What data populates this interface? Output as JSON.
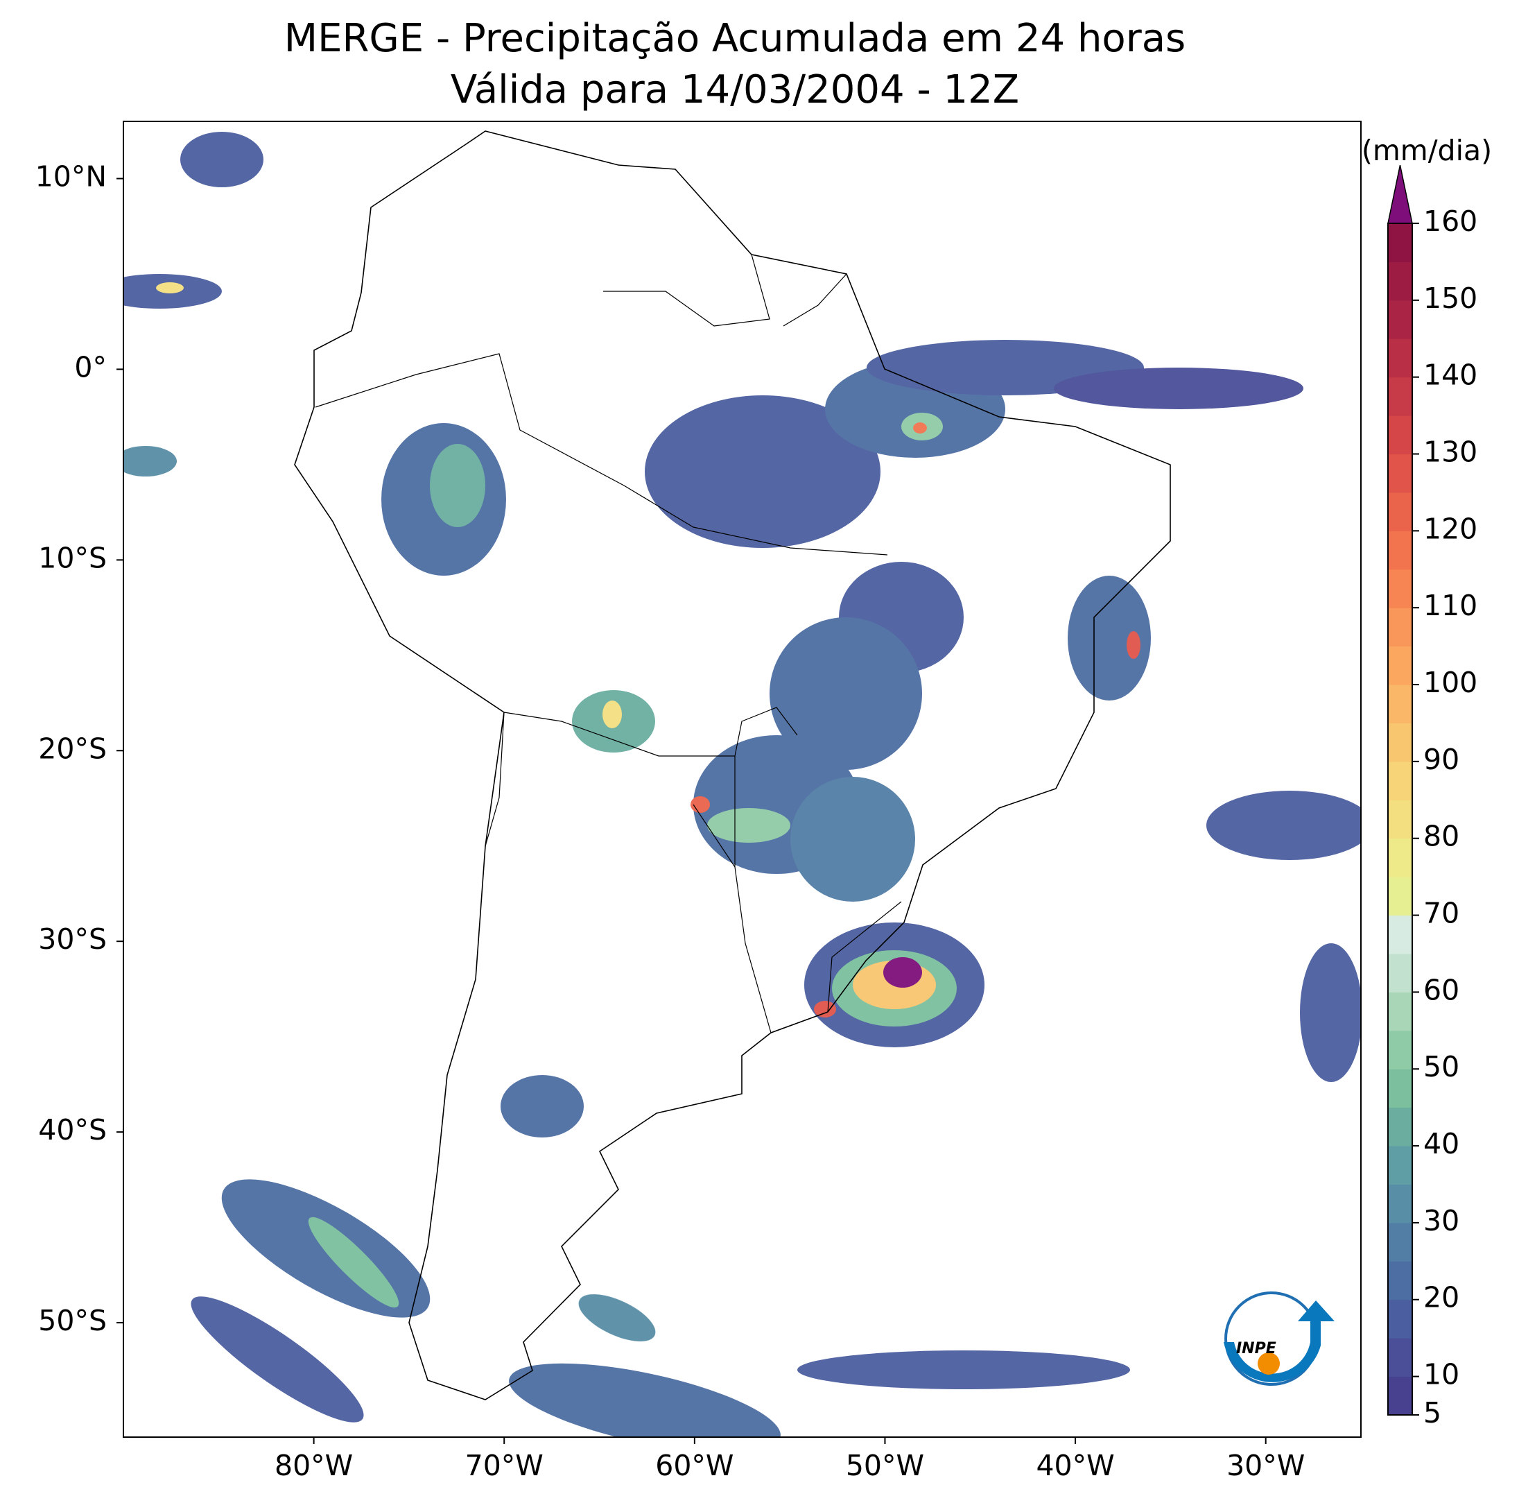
{
  "chart_data": {
    "type": "map",
    "title": "MERGE - Precipitação Acumulada em 24 horas",
    "subtitle": "Válida para 14/03/2004 - 12Z",
    "xlim": [
      -90,
      -25
    ],
    "ylim": [
      -56,
      13
    ],
    "xticks": [
      {
        "value": -80,
        "label": "80°W"
      },
      {
        "value": -70,
        "label": "70°W"
      },
      {
        "value": -60,
        "label": "60°W"
      },
      {
        "value": -50,
        "label": "50°W"
      },
      {
        "value": -40,
        "label": "40°W"
      },
      {
        "value": -30,
        "label": "30°W"
      }
    ],
    "yticks": [
      {
        "value": 10,
        "label": "10°N"
      },
      {
        "value": 0,
        "label": "0°"
      },
      {
        "value": -10,
        "label": "10°S"
      },
      {
        "value": -20,
        "label": "20°S"
      },
      {
        "value": -30,
        "label": "30°S"
      },
      {
        "value": -40,
        "label": "40°S"
      },
      {
        "value": -50,
        "label": "50°S"
      }
    ],
    "colorbar": {
      "label": "(mm/dia)",
      "clim": [
        5,
        160
      ],
      "ticks": [
        5,
        10,
        20,
        30,
        40,
        50,
        60,
        70,
        80,
        90,
        100,
        110,
        120,
        130,
        140,
        150,
        160
      ],
      "colors": [
        "#47418f",
        "#4a4f98",
        "#4b5e9f",
        "#4d6ea3",
        "#527ea5",
        "#588ea6",
        "#5f9ea4",
        "#6baea0",
        "#7bbf9f",
        "#90cba7",
        "#a8d6b7",
        "#c2e1ce",
        "#d8ebe3",
        "#e6f092",
        "#eeea8a",
        "#f4df80",
        "#f8d478",
        "#f9c670",
        "#fab768",
        "#fba760",
        "#f9965a",
        "#f78554",
        "#f2744f",
        "#ea634b",
        "#e05449",
        "#d44648",
        "#c73a47",
        "#b82f46",
        "#aa2545",
        "#9c1c44",
        "#8f1443"
      ],
      "extend_color": "#7e0f7a"
    },
    "logo": "INPE"
  }
}
